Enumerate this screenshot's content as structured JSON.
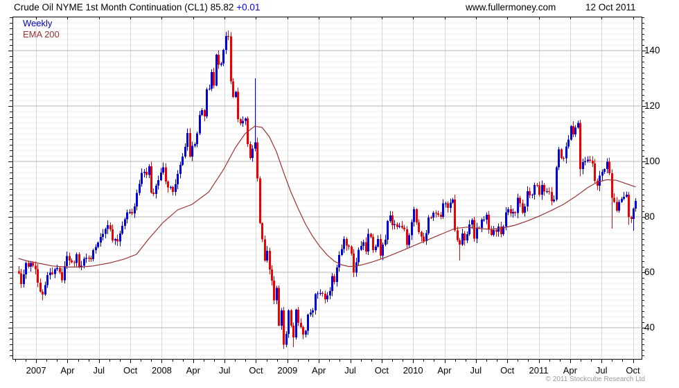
{
  "header": {
    "title": "Crude Oil NYME 1st Month Continuation (CL1)",
    "price": "85.82",
    "change": "+0.01",
    "website": "www.fullermoney.com",
    "date": "12 Oct 2011"
  },
  "legend": {
    "timeframe": "Weekly",
    "overlay": "EMA 200"
  },
  "footer": {
    "copyright": "© 2011 Stockcube Research Ltd"
  },
  "colors": {
    "up": "#0000dd",
    "down": "#ee0000",
    "ema": "#993333",
    "change_text": "#0000ee",
    "legend_weekly": "#0000bb",
    "grid_minor": "#eeeeee",
    "grid_major": "#b5b5b5",
    "grid_vertical": "#d8d8d8",
    "axis": "#000000",
    "copyright_text": "#9a9a9a"
  },
  "chart_data": {
    "type": "candlestick",
    "title": "Crude Oil NYME 1st Month Continuation (CL1)",
    "timeframe": "Weekly",
    "overlay": "EMA 200",
    "last_price": 85.82,
    "change": 0.01,
    "ylim": [
      28.75,
      152.5
    ],
    "y_ticks_major": [
      40,
      60,
      80,
      100,
      120,
      140
    ],
    "y_minor_step": 2,
    "x_labels": [
      "2007",
      "Apr",
      "Jul",
      "Oct",
      "2008",
      "Apr",
      "Jul",
      "Oct",
      "2009",
      "Apr",
      "Jul",
      "Oct",
      "2010",
      "Apr",
      "Jul",
      "Oct",
      "2011",
      "Apr",
      "Jul",
      "Oct"
    ],
    "start_week": "2006-11-10",
    "first_open": 60.4,
    "closes": [
      59.6,
      55.8,
      59.2,
      63.4,
      62.0,
      63.4,
      62.4,
      61.1,
      56.3,
      53.0,
      52.0,
      55.4,
      59.0,
      59.9,
      59.4,
      61.1,
      61.6,
      60.1,
      57.1,
      62.3,
      65.9,
      64.3,
      63.6,
      63.4,
      66.5,
      61.9,
      62.4,
      64.9,
      65.2,
      65.1,
      64.8,
      68.0,
      69.1,
      70.7,
      72.8,
      73.9,
      75.6,
      77.0,
      75.5,
      71.5,
      72.0,
      71.1,
      74.0,
      76.7,
      79.1,
      81.6,
      81.7,
      81.2,
      83.7,
      88.6,
      91.9,
      95.9,
      96.3,
      95.1,
      98.2,
      88.7,
      88.3,
      91.3,
      93.3,
      96.0,
      97.9,
      92.7,
      90.6,
      90.7,
      89.0,
      91.8,
      95.5,
      98.8,
      101.8,
      105.2,
      110.2,
      101.8,
      105.6,
      106.2,
      110.1,
      116.7,
      118.5,
      116.3,
      126.0,
      126.3,
      132.2,
      127.4,
      138.5,
      134.9,
      135.4,
      140.2,
      145.3,
      145.1,
      128.9,
      123.3,
      125.1,
      115.2,
      113.8,
      114.6,
      115.5,
      106.2,
      101.2,
      104.6,
      106.9,
      93.9,
      77.7,
      71.9,
      64.2,
      67.8,
      61.0,
      57.0,
      49.9,
      54.4,
      40.8,
      46.3,
      33.9,
      37.7,
      46.3,
      40.8,
      36.5,
      46.5,
      41.7,
      40.2,
      37.5,
      38.9,
      44.8,
      45.5,
      46.3,
      52.1,
      52.4,
      52.5,
      52.2,
      50.3,
      51.6,
      53.2,
      58.6,
      56.5,
      61.7,
      66.3,
      68.4,
      72.0,
      69.6,
      69.2,
      66.7,
      59.9,
      63.6,
      68.1,
      69.5,
      70.9,
      67.5,
      73.9,
      72.7,
      68.0,
      69.3,
      72.0,
      66.0,
      70.0,
      71.8,
      78.5,
      80.5,
      77.0,
      77.4,
      76.4,
      76.7,
      76.1,
      75.5,
      69.9,
      73.4,
      78.1,
      82.8,
      78.0,
      74.5,
      72.9,
      71.2,
      74.1,
      79.8,
      79.7,
      81.5,
      81.2,
      80.7,
      80.0,
      84.9,
      84.9,
      83.2,
      85.1,
      86.2,
      75.1,
      71.6,
      70.0,
      74.0,
      71.5,
      73.8,
      77.2,
      78.9,
      72.1,
      76.1,
      76.0,
      79.0,
      79.0,
      80.7,
      75.4,
      73.5,
      75.2,
      74.6,
      76.5,
      73.7,
      76.5,
      81.6,
      82.7,
      81.3,
      81.7,
      81.4,
      86.9,
      84.9,
      81.5,
      83.8,
      89.2,
      87.8,
      88.0,
      91.5,
      91.4,
      88.0,
      91.5,
      89.1,
      89.3,
      89.0,
      85.6,
      86.2,
      97.9,
      104.4,
      101.2,
      101.1,
      105.4,
      107.9,
      112.8,
      109.7,
      112.3,
      113.9,
      97.2,
      99.7,
      100.1,
      100.6,
      100.2,
      99.3,
      93.0,
      91.2,
      94.9,
      96.2,
      97.2,
      99.9,
      95.7,
      86.9,
      85.4,
      82.3,
      85.4,
      86.5,
      87.2,
      88.0,
      79.9,
      79.2,
      83.0,
      85.8
    ],
    "hl_overrides": {
      "10": {
        "low": 49.9
      },
      "87": {
        "high": 147.3
      },
      "98": {
        "high": 130.0
      },
      "110": {
        "low": 32.4
      },
      "114": {
        "low": 33.0
      },
      "183": {
        "low": 64.2
      },
      "232": {
        "high": 114.8
      },
      "233": {
        "low": 94.6
      },
      "246": {
        "low": 75.7
      },
      "253": {
        "low": 77.1
      },
      "255": {
        "low": 75.0
      }
    },
    "ema200": [
      [
        0,
        65.0
      ],
      [
        4,
        64.0
      ],
      [
        10,
        63.0
      ],
      [
        14,
        62.3
      ],
      [
        20,
        61.9
      ],
      [
        26,
        61.9
      ],
      [
        31,
        62.3
      ],
      [
        38,
        63.4
      ],
      [
        44,
        64.8
      ],
      [
        49,
        66.5
      ],
      [
        54,
        72.0
      ],
      [
        60,
        78.0
      ],
      [
        66,
        82.5
      ],
      [
        72,
        84.5
      ],
      [
        79,
        89.0
      ],
      [
        85,
        97.0
      ],
      [
        90,
        105.0
      ],
      [
        94,
        110.0
      ],
      [
        98,
        112.7
      ],
      [
        101,
        112.3
      ],
      [
        104,
        109.0
      ],
      [
        107,
        103.5
      ],
      [
        110,
        96.0
      ],
      [
        113,
        89.0
      ],
      [
        116,
        83.0
      ],
      [
        119,
        77.5
      ],
      [
        122,
        73.0
      ],
      [
        125,
        69.3
      ],
      [
        128,
        66.3
      ],
      [
        131,
        64.0
      ],
      [
        134,
        62.7
      ],
      [
        137,
        62.1
      ],
      [
        140,
        62.2
      ],
      [
        143,
        62.8
      ],
      [
        147,
        63.8
      ],
      [
        152,
        65.3
      ],
      [
        158,
        67.4
      ],
      [
        164,
        69.6
      ],
      [
        170,
        71.8
      ],
      [
        176,
        74.0
      ],
      [
        181,
        75.8
      ],
      [
        186,
        76.3
      ],
      [
        191,
        75.8
      ],
      [
        196,
        75.5
      ],
      [
        201,
        76.0
      ],
      [
        206,
        77.0
      ],
      [
        211,
        78.5
      ],
      [
        216,
        80.3
      ],
      [
        221,
        82.3
      ],
      [
        226,
        84.5
      ],
      [
        231,
        87.3
      ],
      [
        236,
        90.5
      ],
      [
        240,
        92.5
      ],
      [
        244,
        93.4
      ],
      [
        248,
        93.2
      ],
      [
        251,
        92.3
      ],
      [
        254,
        91.4
      ],
      [
        256,
        90.8
      ]
    ]
  }
}
